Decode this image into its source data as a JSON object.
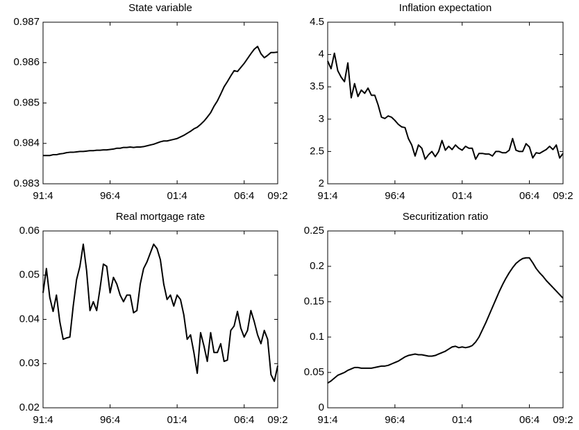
{
  "chart_data": [
    {
      "type": "line",
      "title": "State variable",
      "color": "#000000",
      "categories": [
        "91:4",
        null,
        null,
        null,
        null,
        null,
        null,
        null,
        null,
        null,
        null,
        null,
        null,
        null,
        null,
        null,
        null,
        null,
        null,
        null,
        "96:4",
        null,
        null,
        null,
        null,
        null,
        null,
        null,
        null,
        null,
        null,
        null,
        null,
        null,
        null,
        null,
        null,
        null,
        null,
        null,
        "01:4",
        null,
        null,
        null,
        null,
        null,
        null,
        null,
        null,
        null,
        null,
        null,
        null,
        null,
        null,
        null,
        null,
        null,
        null,
        null,
        "06:4",
        null,
        null,
        null,
        null,
        null,
        null,
        null,
        null,
        null,
        "09:2"
      ],
      "values": [
        0.9837,
        0.9837,
        0.9837,
        0.98372,
        0.98372,
        0.98374,
        0.98375,
        0.98377,
        0.98378,
        0.98378,
        0.98379,
        0.9838,
        0.9838,
        0.98381,
        0.98382,
        0.98382,
        0.98383,
        0.98383,
        0.98384,
        0.98384,
        0.98385,
        0.98386,
        0.98388,
        0.98388,
        0.9839,
        0.9839,
        0.98391,
        0.9839,
        0.98391,
        0.98391,
        0.98392,
        0.98394,
        0.98396,
        0.98398,
        0.98401,
        0.98404,
        0.98406,
        0.98406,
        0.98408,
        0.9841,
        0.98412,
        0.98416,
        0.9842,
        0.98425,
        0.9843,
        0.98436,
        0.9844,
        0.98447,
        0.98455,
        0.98465,
        0.98476,
        0.98492,
        0.98505,
        0.98522,
        0.9854,
        0.98553,
        0.98567,
        0.9858,
        0.98578,
        0.98588,
        0.98598,
        0.9861,
        0.98622,
        0.98633,
        0.9864,
        0.98622,
        0.98612,
        0.98618,
        0.98625,
        0.98625,
        0.98626
      ],
      "ylim": [
        0.983,
        0.987
      ],
      "yticks": [
        0.983,
        0.984,
        0.985,
        0.986,
        0.987
      ]
    },
    {
      "type": "line",
      "title": "Inflation expectation",
      "color": "#000000",
      "categories": [
        "91:4",
        null,
        null,
        null,
        null,
        null,
        null,
        null,
        null,
        null,
        null,
        null,
        null,
        null,
        null,
        null,
        null,
        null,
        null,
        null,
        "96:4",
        null,
        null,
        null,
        null,
        null,
        null,
        null,
        null,
        null,
        null,
        null,
        null,
        null,
        null,
        null,
        null,
        null,
        null,
        null,
        "01:4",
        null,
        null,
        null,
        null,
        null,
        null,
        null,
        null,
        null,
        null,
        null,
        null,
        null,
        null,
        null,
        null,
        null,
        null,
        null,
        "06:4",
        null,
        null,
        null,
        null,
        null,
        null,
        null,
        null,
        null,
        "09:2"
      ],
      "values": [
        3.9,
        3.78,
        4.02,
        3.75,
        3.65,
        3.58,
        3.87,
        3.33,
        3.55,
        3.35,
        3.45,
        3.4,
        3.48,
        3.37,
        3.37,
        3.22,
        3.03,
        3.01,
        3.05,
        3.03,
        2.98,
        2.92,
        2.88,
        2.87,
        2.7,
        2.6,
        2.43,
        2.6,
        2.55,
        2.38,
        2.45,
        2.5,
        2.42,
        2.5,
        2.67,
        2.52,
        2.58,
        2.53,
        2.6,
        2.55,
        2.52,
        2.58,
        2.55,
        2.55,
        2.38,
        2.47,
        2.47,
        2.46,
        2.46,
        2.43,
        2.5,
        2.5,
        2.48,
        2.48,
        2.52,
        2.7,
        2.52,
        2.5,
        2.5,
        2.62,
        2.57,
        2.4,
        2.48,
        2.47,
        2.5,
        2.53,
        2.58,
        2.53,
        2.6,
        2.4,
        2.47
      ],
      "ylim": [
        2,
        4.5
      ],
      "yticks": [
        2,
        2.5,
        3,
        3.5,
        4,
        4.5
      ]
    },
    {
      "type": "line",
      "title": "Real mortgage rate",
      "color": "#000000",
      "categories": [
        "91:4",
        null,
        null,
        null,
        null,
        null,
        null,
        null,
        null,
        null,
        null,
        null,
        null,
        null,
        null,
        null,
        null,
        null,
        null,
        null,
        "96:4",
        null,
        null,
        null,
        null,
        null,
        null,
        null,
        null,
        null,
        null,
        null,
        null,
        null,
        null,
        null,
        null,
        null,
        null,
        null,
        "01:4",
        null,
        null,
        null,
        null,
        null,
        null,
        null,
        null,
        null,
        null,
        null,
        null,
        null,
        null,
        null,
        null,
        null,
        null,
        null,
        "06:4",
        null,
        null,
        null,
        null,
        null,
        null,
        null,
        null,
        null,
        "09:2"
      ],
      "values": [
        0.046,
        0.0515,
        0.045,
        0.0418,
        0.0455,
        0.0395,
        0.0355,
        0.0358,
        0.036,
        0.043,
        0.049,
        0.052,
        0.057,
        0.051,
        0.042,
        0.044,
        0.042,
        0.047,
        0.0525,
        0.052,
        0.046,
        0.0495,
        0.048,
        0.0455,
        0.044,
        0.0455,
        0.0455,
        0.0415,
        0.042,
        0.048,
        0.0515,
        0.053,
        0.055,
        0.057,
        0.056,
        0.0535,
        0.048,
        0.0445,
        0.0455,
        0.043,
        0.0455,
        0.0445,
        0.041,
        0.0355,
        0.0365,
        0.0325,
        0.0278,
        0.037,
        0.034,
        0.0305,
        0.037,
        0.0325,
        0.0325,
        0.0345,
        0.0305,
        0.0308,
        0.0375,
        0.0385,
        0.0418,
        0.038,
        0.036,
        0.0375,
        0.042,
        0.0395,
        0.0365,
        0.0345,
        0.0375,
        0.0355,
        0.0275,
        0.026,
        0.0295
      ],
      "ylim": [
        0.02,
        0.06
      ],
      "yticks": [
        0.02,
        0.03,
        0.04,
        0.05,
        0.06
      ]
    },
    {
      "type": "line",
      "title": "Securitization ratio",
      "color": "#000000",
      "categories": [
        "91:4",
        null,
        null,
        null,
        null,
        null,
        null,
        null,
        null,
        null,
        null,
        null,
        null,
        null,
        null,
        null,
        null,
        null,
        null,
        null,
        "96:4",
        null,
        null,
        null,
        null,
        null,
        null,
        null,
        null,
        null,
        null,
        null,
        null,
        null,
        null,
        null,
        null,
        null,
        null,
        null,
        "01:4",
        null,
        null,
        null,
        null,
        null,
        null,
        null,
        null,
        null,
        null,
        null,
        null,
        null,
        null,
        null,
        null,
        null,
        null,
        null,
        "06:4",
        null,
        null,
        null,
        null,
        null,
        null,
        null,
        null,
        null,
        "09:2"
      ],
      "values": [
        0.035,
        0.038,
        0.042,
        0.046,
        0.048,
        0.05,
        0.053,
        0.055,
        0.057,
        0.057,
        0.056,
        0.056,
        0.056,
        0.056,
        0.057,
        0.058,
        0.059,
        0.059,
        0.06,
        0.062,
        0.064,
        0.066,
        0.069,
        0.072,
        0.074,
        0.075,
        0.076,
        0.075,
        0.075,
        0.074,
        0.073,
        0.073,
        0.074,
        0.076,
        0.078,
        0.08,
        0.083,
        0.086,
        0.087,
        0.085,
        0.086,
        0.085,
        0.086,
        0.088,
        0.093,
        0.1,
        0.11,
        0.12,
        0.131,
        0.142,
        0.153,
        0.164,
        0.174,
        0.183,
        0.191,
        0.198,
        0.204,
        0.208,
        0.211,
        0.212,
        0.212,
        0.205,
        0.197,
        0.191,
        0.186,
        0.18,
        0.175,
        0.17,
        0.165,
        0.16,
        0.155
      ],
      "ylim": [
        0,
        0.25
      ],
      "yticks": [
        0,
        0.05,
        0.1,
        0.15,
        0.2,
        0.25
      ]
    }
  ]
}
